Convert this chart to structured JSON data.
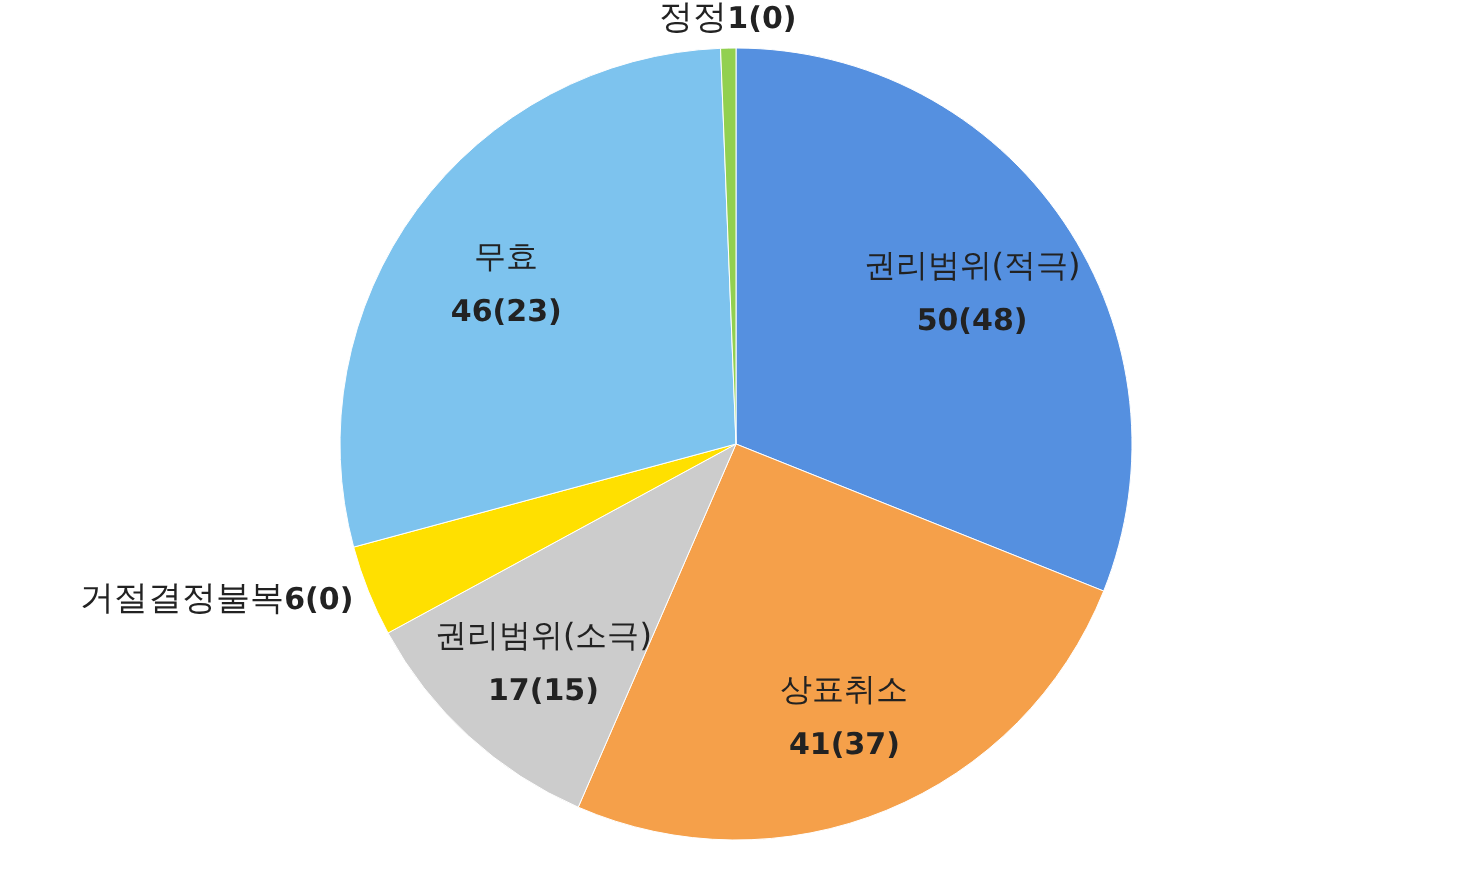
{
  "chart_data": {
    "type": "pie",
    "categories": [
      "권리범위(적극)",
      "상표취소",
      "권리범위(소극)",
      "거절결정불복",
      "무효",
      "정정"
    ],
    "values": [
      50,
      41,
      17,
      6,
      46,
      1
    ],
    "value_labels": [
      "50(48)",
      "41(37)",
      "17(15)",
      "6(0)",
      "46(23)",
      "1(0)"
    ],
    "colors": [
      "#5590e0",
      "#f5a04a",
      "#cccccc",
      "#ffe000",
      "#7dc3ee",
      "#92d050"
    ],
    "legend": false
  }
}
